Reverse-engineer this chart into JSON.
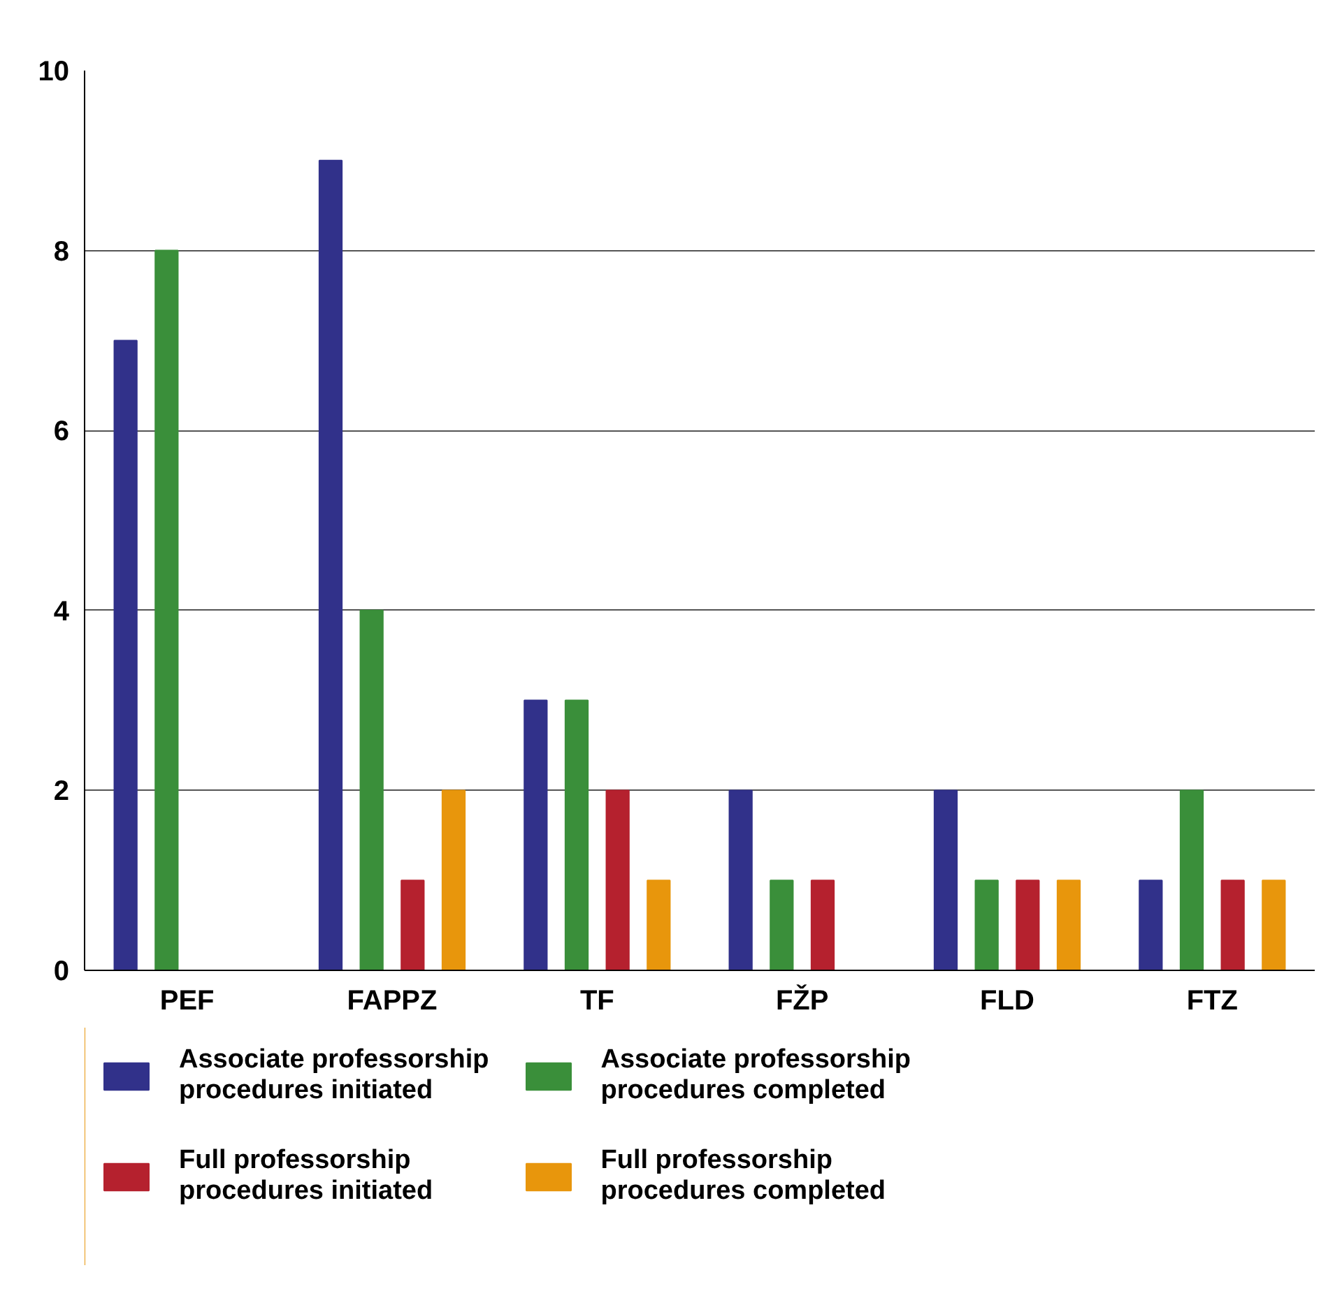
{
  "chart_data": {
    "type": "bar",
    "categories": [
      "PEF",
      "FAPPZ",
      "TF",
      "FŽP",
      "FLD",
      "FTZ"
    ],
    "series": [
      {
        "name": "Associate professorship procedures initiated",
        "color": "#31318a",
        "values": [
          7,
          9,
          3,
          2,
          2,
          1
        ]
      },
      {
        "name": "Associate professorship procedures completed",
        "color": "#3a8f3a",
        "values": [
          8,
          4,
          3,
          1,
          1,
          2
        ]
      },
      {
        "name": "Full professorship procedures initiated",
        "color": "#b5212e",
        "values": [
          0,
          1,
          2,
          1,
          1,
          1
        ]
      },
      {
        "name": "Full professorship procedures completed",
        "color": "#e8960c",
        "values": [
          0,
          2,
          1,
          0,
          1,
          1
        ]
      }
    ],
    "ylim": [
      0,
      10
    ],
    "yticks": [
      0,
      2,
      4,
      6,
      8,
      10
    ],
    "grid": "y",
    "legend": "bottom"
  }
}
